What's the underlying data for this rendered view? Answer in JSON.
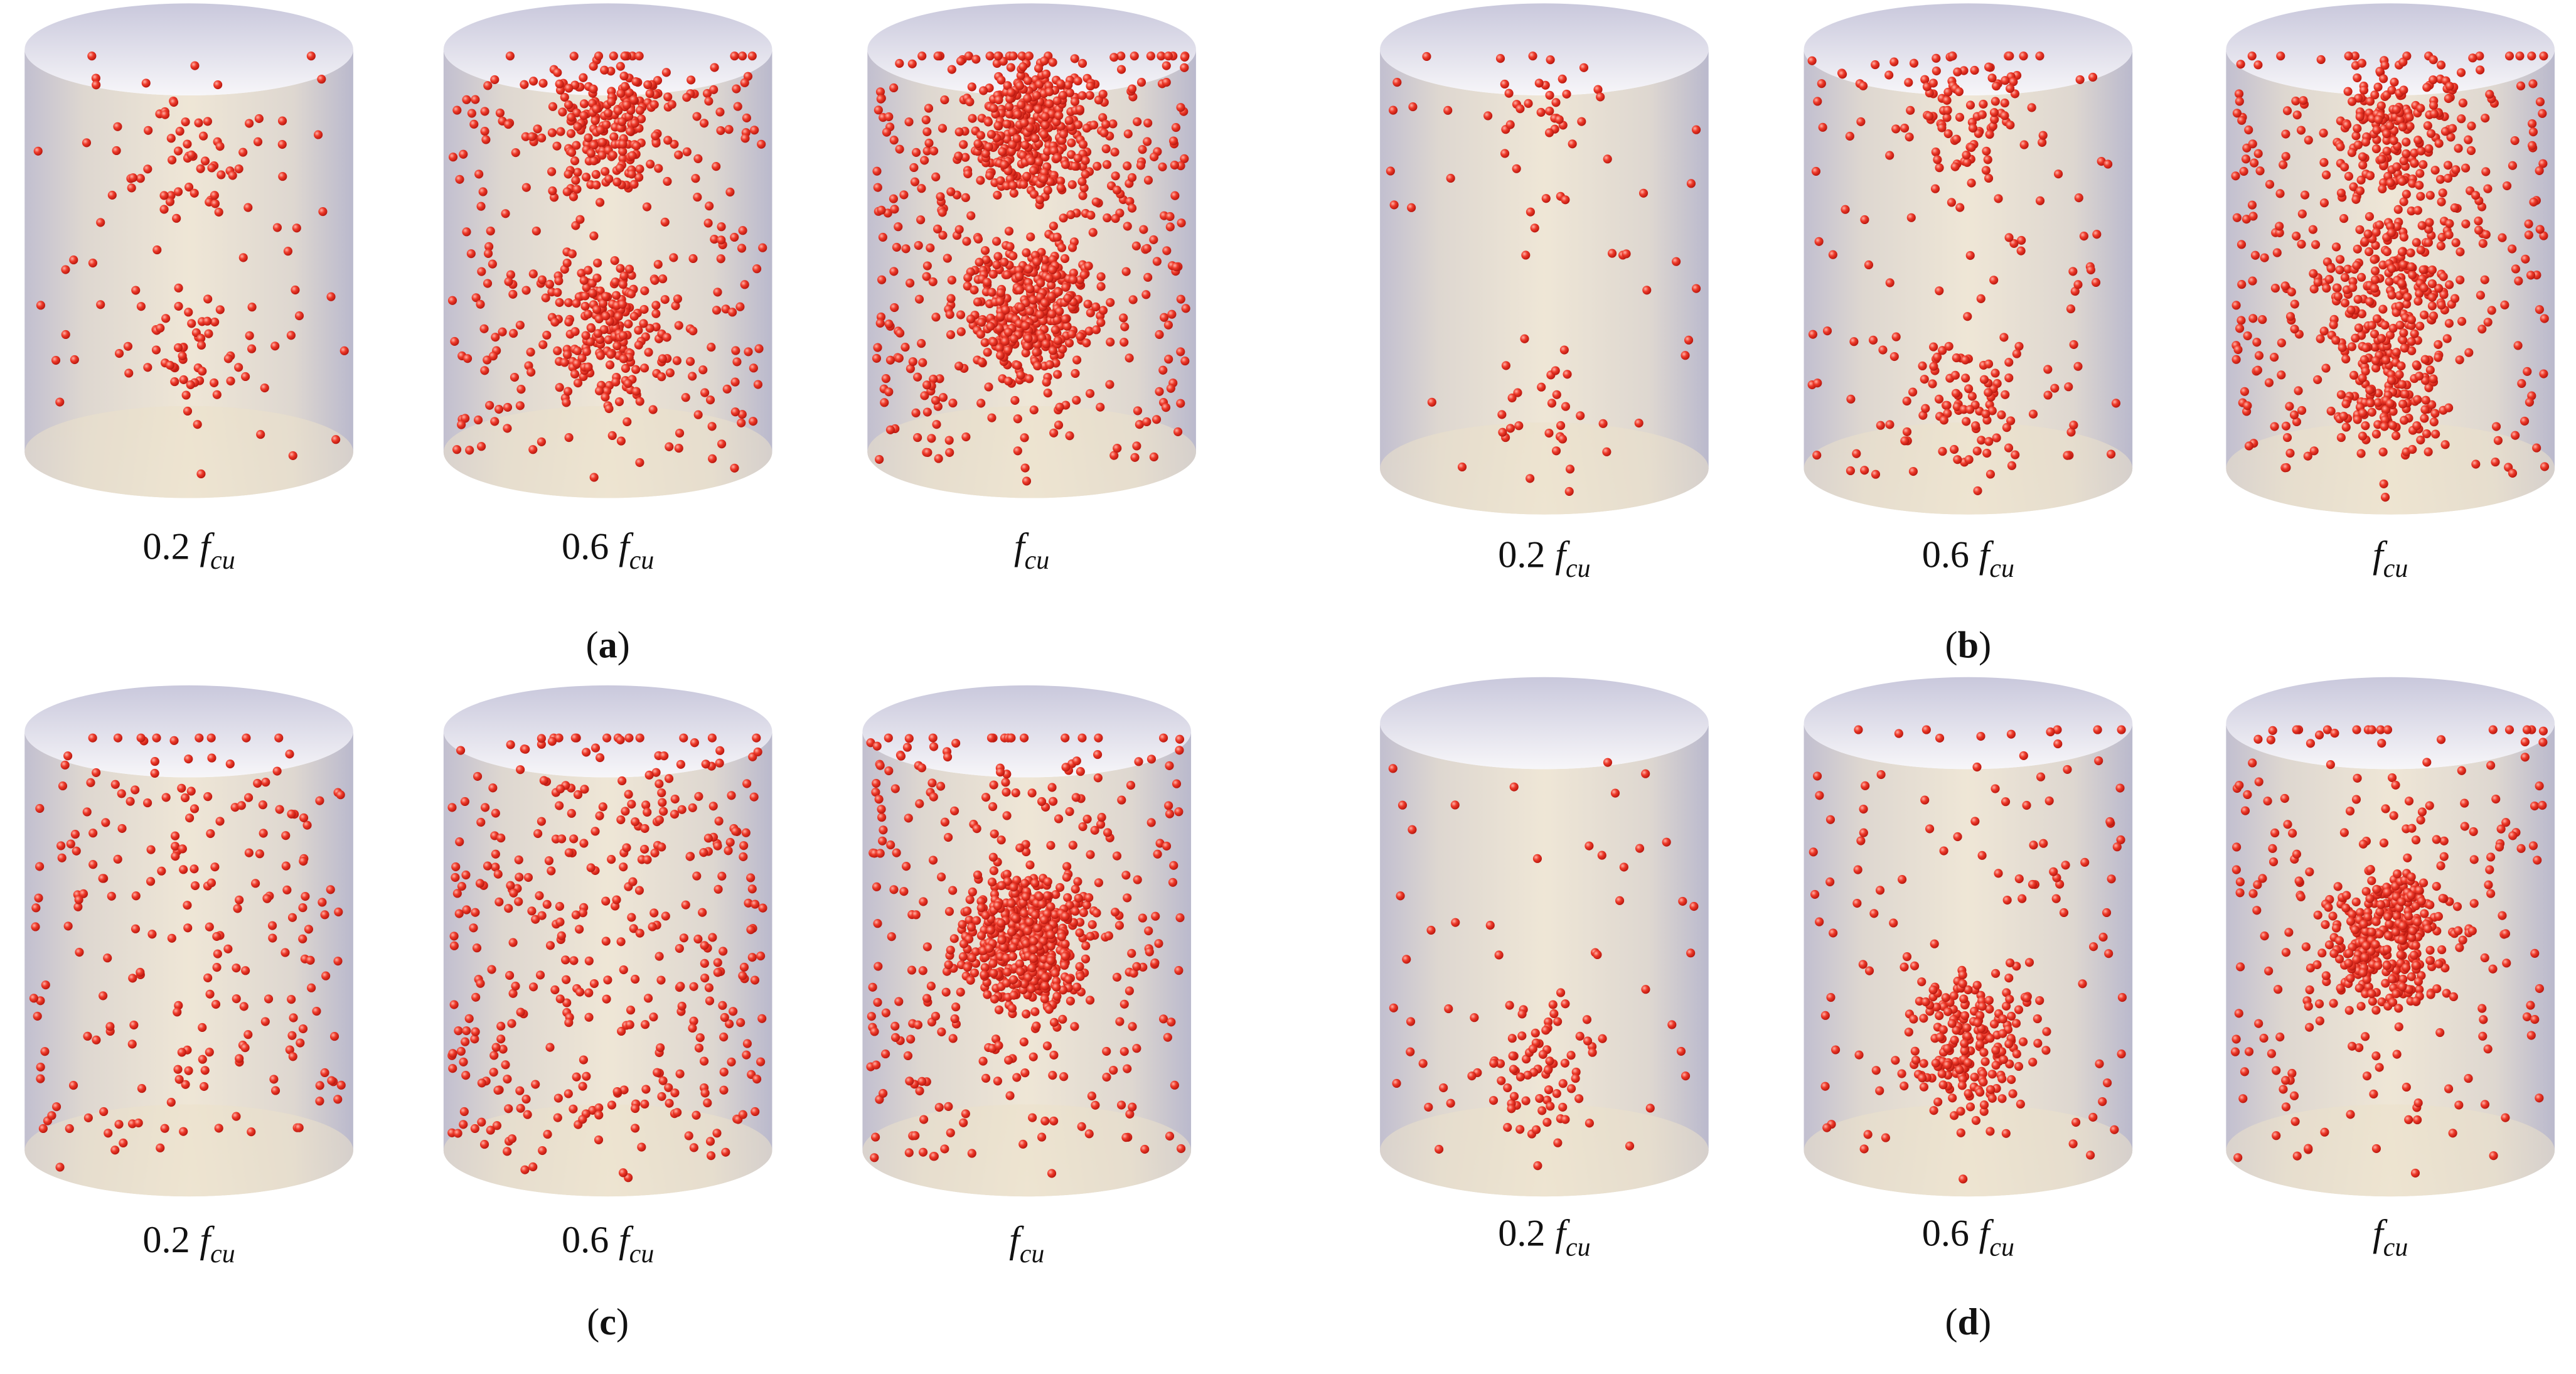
{
  "panels": [
    {
      "label": [
        "(",
        "a",
        ")"
      ],
      "captions": [
        {
          "coefficient": "0.2",
          "symbol": "f",
          "subscript": "cu"
        },
        {
          "coefficient": "0.6",
          "symbol": "f",
          "subscript": "cu"
        },
        {
          "symbol": "f",
          "subscript": "cu"
        }
      ]
    },
    {
      "label": [
        "(",
        "b",
        ")"
      ],
      "captions": [
        {
          "coefficient": "0.2",
          "symbol": "f",
          "subscript": "cu"
        },
        {
          "coefficient": "0.6",
          "symbol": "f",
          "subscript": "cu"
        },
        {
          "symbol": "f",
          "subscript": "cu"
        }
      ]
    },
    {
      "label": [
        "(",
        "c",
        ")"
      ],
      "captions": [
        {
          "coefficient": "0.2",
          "symbol": "f",
          "subscript": "cu"
        },
        {
          "coefficient": "0.6",
          "symbol": "f",
          "subscript": "cu"
        },
        {
          "symbol": "f",
          "subscript": "cu"
        }
      ]
    },
    {
      "label": [
        "(",
        "d",
        ")"
      ],
      "captions": [
        {
          "coefficient": "0.2",
          "symbol": "f",
          "subscript": "cu"
        },
        {
          "coefficient": "0.6",
          "symbol": "f",
          "subscript": "cu"
        },
        {
          "symbol": "f",
          "subscript": "cu"
        }
      ]
    }
  ]
}
